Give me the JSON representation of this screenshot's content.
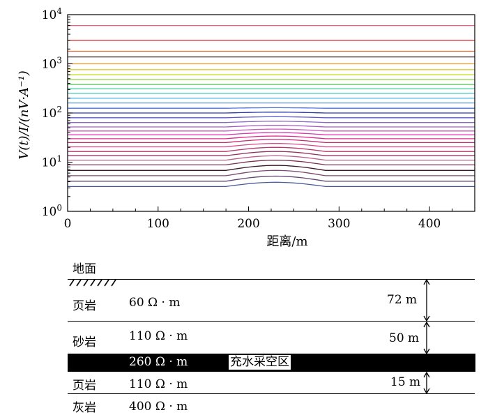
{
  "chart_data": {
    "type": "line",
    "xlabel": "距离/m",
    "ylabel": "V(t)/I/(nV·A⁻¹)",
    "xlim": [
      0,
      450
    ],
    "ylim": [
      1,
      10000
    ],
    "yscale": "log",
    "x_ticks": [
      0,
      100,
      200,
      300,
      400
    ],
    "y_ticks": [
      {
        "base": "10",
        "exp": "0",
        "value": 1
      },
      {
        "base": "10",
        "exp": "1",
        "value": 10
      },
      {
        "base": "10",
        "exp": "2",
        "value": 100
      },
      {
        "base": "10",
        "exp": "3",
        "value": 1000
      },
      {
        "base": "10",
        "exp": "4",
        "value": 10000
      }
    ],
    "anomaly_x_range": [
      175,
      285
    ],
    "anomaly_peak_x": 230,
    "series": [
      {
        "base": 6000,
        "peak": 6000,
        "color": "#e8607a"
      },
      {
        "base": 3000,
        "peak": 3000,
        "color": "#d8242a"
      },
      {
        "base": 1800,
        "peak": 1800,
        "color": "#e86a3a"
      },
      {
        "base": 1380,
        "peak": 1380,
        "color": "#3a2a2a"
      },
      {
        "base": 1000,
        "peak": 1000,
        "color": "#ee9a2a"
      },
      {
        "base": 760,
        "peak": 760,
        "color": "#d8c21a"
      },
      {
        "base": 600,
        "peak": 600,
        "color": "#bcd81a"
      },
      {
        "base": 480,
        "peak": 480,
        "color": "#8ad83a"
      },
      {
        "base": 380,
        "peak": 380,
        "color": "#4ec858"
      },
      {
        "base": 310,
        "peak": 310,
        "color": "#3ac89a"
      },
      {
        "base": 250,
        "peak": 250,
        "color": "#40c8c0"
      },
      {
        "base": 200,
        "peak": 200,
        "color": "#58b8e0"
      },
      {
        "base": 160,
        "peak": 160,
        "color": "#5a9ae0"
      },
      {
        "base": 125,
        "peak": 128,
        "color": "#4a70d8"
      },
      {
        "base": 100,
        "peak": 104,
        "color": "#2a3aa8"
      },
      {
        "base": 80,
        "peak": 84,
        "color": "#5a58d0"
      },
      {
        "base": 64,
        "peak": 68,
        "color": "#8a68c8"
      },
      {
        "base": 52,
        "peak": 56,
        "color": "#a85ac8"
      },
      {
        "base": 43,
        "peak": 47,
        "color": "#c858c0"
      },
      {
        "base": 36,
        "peak": 40,
        "color": "#d83ab0"
      },
      {
        "base": 30,
        "peak": 34,
        "color": "#e02a90"
      },
      {
        "base": 25,
        "peak": 29,
        "color": "#c82a70"
      },
      {
        "base": 20.5,
        "peak": 24,
        "color": "#d84a88"
      },
      {
        "base": 16.5,
        "peak": 20,
        "color": "#b83870"
      },
      {
        "base": 13.5,
        "peak": 16.5,
        "color": "#903060"
      },
      {
        "base": 11,
        "peak": 13.5,
        "color": "#b86090"
      },
      {
        "base": 8.8,
        "peak": 11,
        "color": "#7a3050"
      },
      {
        "base": 6.8,
        "peak": 8.6,
        "color": "#3a1a2a"
      },
      {
        "base": 5.3,
        "peak": 6.8,
        "color": "#7a4870"
      },
      {
        "base": 4.1,
        "peak": 5.2,
        "color": "#604870"
      },
      {
        "base": 3.2,
        "peak": 3.9,
        "color": "#4a5a98"
      }
    ]
  },
  "model": {
    "ground_label": "地面",
    "layers": [
      {
        "rock": "页岩",
        "resistivity": "60 Ω · m",
        "thickness": "72 m"
      },
      {
        "rock": "砂岩",
        "resistivity": "110 Ω · m",
        "thickness": "50 m"
      },
      {
        "rock": "",
        "resistivity": "260 Ω · m",
        "tag": "充水采空区"
      },
      {
        "rock": "页岩",
        "resistivity": "110 Ω · m",
        "thickness": "15 m"
      },
      {
        "rock": "灰岩",
        "resistivity": "400 Ω · m"
      }
    ]
  }
}
